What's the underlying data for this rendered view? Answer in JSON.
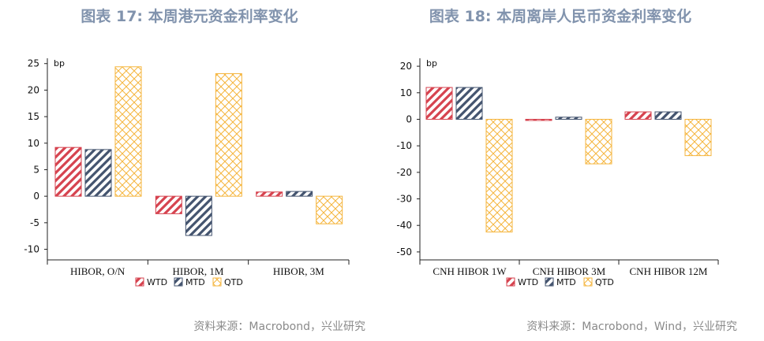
{
  "left": {
    "title": "图表 17: 本周港元资金利率变化",
    "source": "资料来源：Macrobond，兴业研究"
  },
  "right": {
    "title": "图表 18: 本周离岸人民币资金利率变化",
    "source": "资料来源：Macrobond，Wind，兴业研究"
  },
  "colors": {
    "WTD": "#d6434f",
    "MTD": "#44546f",
    "QTD": "#f5b53d"
  },
  "chart_data": [
    {
      "type": "bar",
      "unit": "bp",
      "categories": [
        "HIBOR, O/N",
        "HIBOR, 1M",
        "HIBOR, 3M"
      ],
      "series": [
        {
          "name": "WTD",
          "values": [
            9.2,
            -3.3,
            0.8
          ]
        },
        {
          "name": "MTD",
          "values": [
            8.8,
            -7.4,
            0.9
          ]
        },
        {
          "name": "QTD",
          "values": [
            24.4,
            23.1,
            -5.2
          ]
        }
      ],
      "ylim": [
        -12,
        26
      ],
      "yticks": [
        25,
        20,
        15,
        10,
        5,
        0,
        -5,
        -10
      ],
      "legend": "bottom"
    },
    {
      "type": "bar",
      "unit": "bp",
      "categories": [
        "CNH HIBOR 1W",
        "CNH HIBOR 3M",
        "CNH HIBOR 12M"
      ],
      "series": [
        {
          "name": "WTD",
          "values": [
            12.0,
            -0.3,
            2.8
          ]
        },
        {
          "name": "MTD",
          "values": [
            12.0,
            0.8,
            2.8
          ]
        },
        {
          "name": "QTD",
          "values": [
            -42.5,
            -16.8,
            -13.7
          ]
        }
      ],
      "ylim": [
        -53,
        23
      ],
      "yticks": [
        20,
        10,
        0,
        -10,
        -20,
        -30,
        -40,
        -50
      ],
      "legend": "bottom"
    }
  ]
}
